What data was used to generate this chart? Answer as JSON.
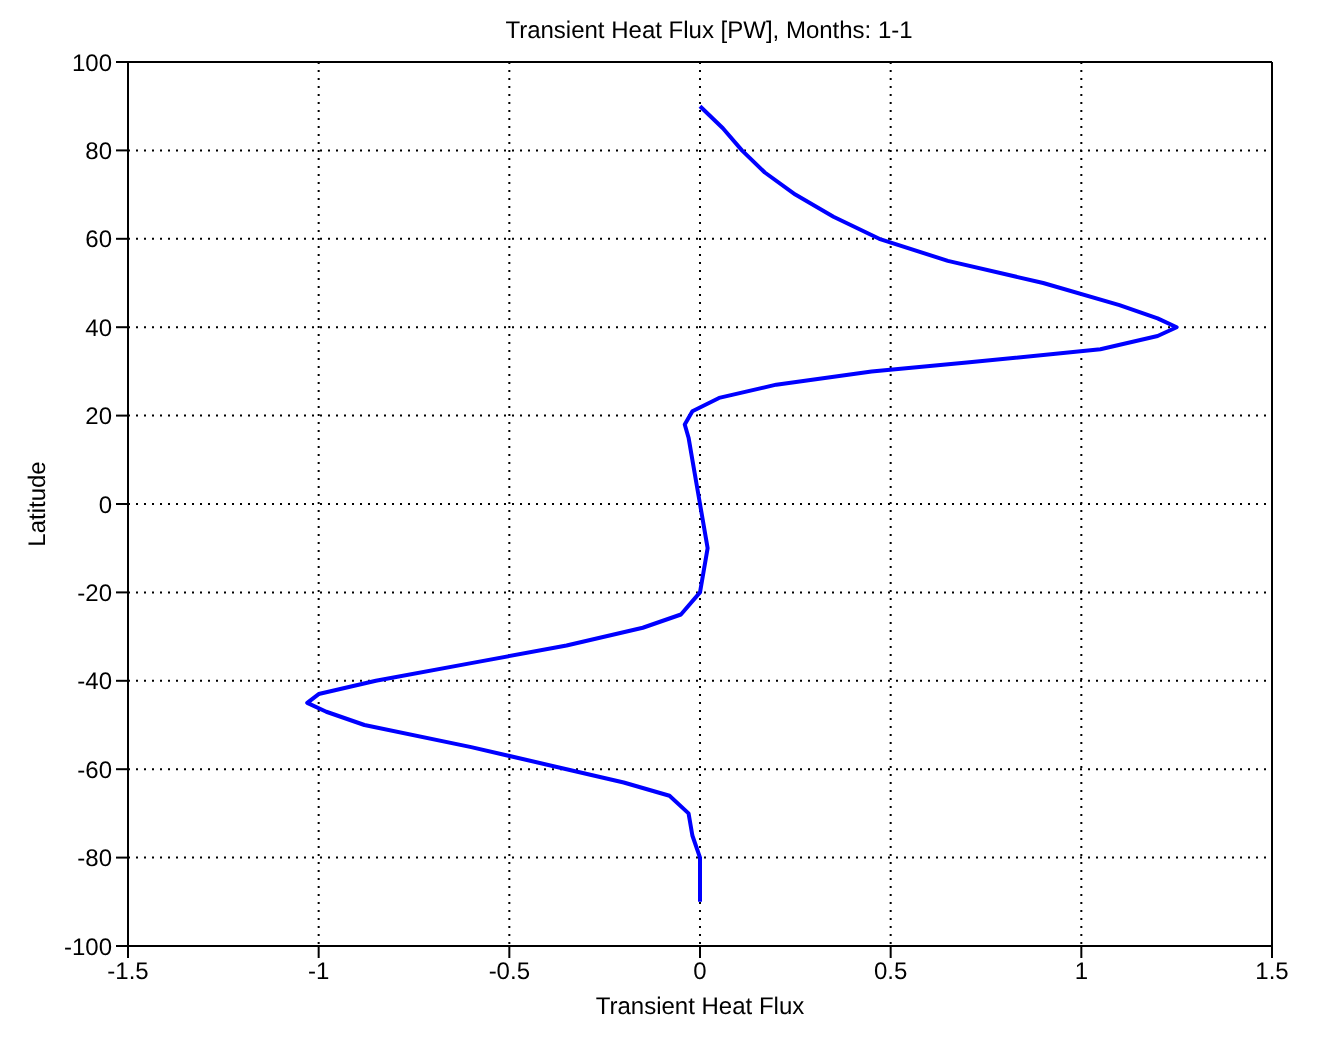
{
  "chart_data": {
    "type": "line",
    "title": "Transient Heat Flux [PW], Months: 1-1",
    "xlabel": "Transient Heat Flux",
    "ylabel": "Latitude",
    "x": [
      0,
      0.06,
      0.11,
      0.17,
      0.25,
      0.35,
      0.47,
      0.65,
      0.9,
      1.1,
      1.2,
      1.25,
      1.2,
      1.05,
      0.7,
      0.45,
      0.2,
      0.05,
      -0.02,
      -0.04,
      -0.03,
      -0.02,
      0,
      0.02,
      0,
      -0.05,
      -0.15,
      -0.35,
      -0.6,
      -0.85,
      -1,
      -1.03,
      -0.98,
      -0.88,
      -0.6,
      -0.35,
      -0.2,
      -0.08,
      -0.03,
      -0.02,
      0,
      0,
      0
    ],
    "series": [
      {
        "color": "#0000ff",
        "values": [
          90,
          85,
          80,
          75,
          70,
          65,
          60,
          55,
          50,
          45,
          42,
          40,
          38,
          35,
          32,
          30,
          27,
          24,
          21,
          18,
          15,
          10,
          0,
          -10,
          -20,
          -25,
          -28,
          -32,
          -36,
          -40,
          -43,
          -45,
          -47,
          -50,
          -55,
          -60,
          -63,
          -66,
          -70,
          -75,
          -80,
          -85,
          -90
        ]
      }
    ],
    "xlim": [
      -1.5,
      1.5
    ],
    "xticks": [
      -1.5,
      -1,
      -0.5,
      0,
      0.5,
      1,
      1.5
    ],
    "ylim": [
      -100,
      100
    ],
    "yticks": [
      -100,
      -80,
      -60,
      -40,
      -20,
      0,
      20,
      40,
      60,
      80,
      100
    ],
    "grid": true,
    "line_style": "solid"
  }
}
